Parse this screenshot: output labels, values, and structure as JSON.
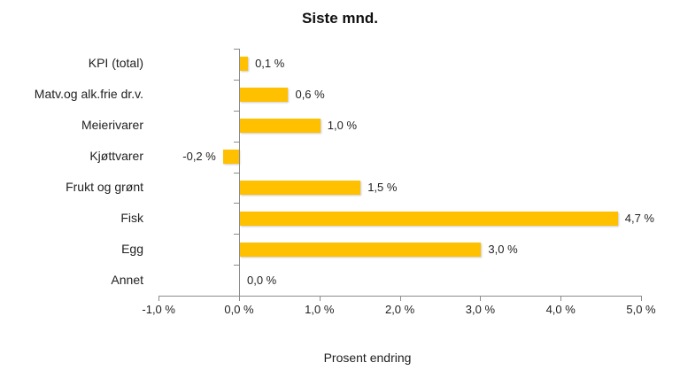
{
  "chart_data": {
    "type": "bar",
    "orientation": "horizontal",
    "title": "Siste mnd.",
    "xlabel": "Prosent endring",
    "ylabel": "",
    "categories": [
      "KPI (total)",
      "Matv.og alk.frie dr.v.",
      "Meierivarer",
      "Kjøttvarer",
      "Frukt og grønt",
      "Fisk",
      "Egg",
      "Annet"
    ],
    "values": [
      0.1,
      0.6,
      1.0,
      -0.2,
      1.5,
      4.7,
      3.0,
      0.0
    ],
    "value_labels": [
      "0,1 %",
      "0,6 %",
      "1,0 %",
      "-0,2 %",
      "1,5 %",
      "4,7 %",
      "3,0 %",
      "0,0 %"
    ],
    "x_ticks": [
      -1,
      0,
      1,
      2,
      3,
      4,
      5
    ],
    "x_tick_labels": [
      "-1,0 %",
      "0,0 %",
      "1,0 %",
      "2,0 %",
      "3,0 %",
      "4,0 %",
      "5,0 %"
    ],
    "xlim": [
      -1,
      5
    ],
    "bar_color": "#FFC000",
    "axis_color": "#8C8C8C",
    "text_color": "#1f1f1f",
    "background_color": "#FFFFFF",
    "legend": "none",
    "grid": "off"
  }
}
